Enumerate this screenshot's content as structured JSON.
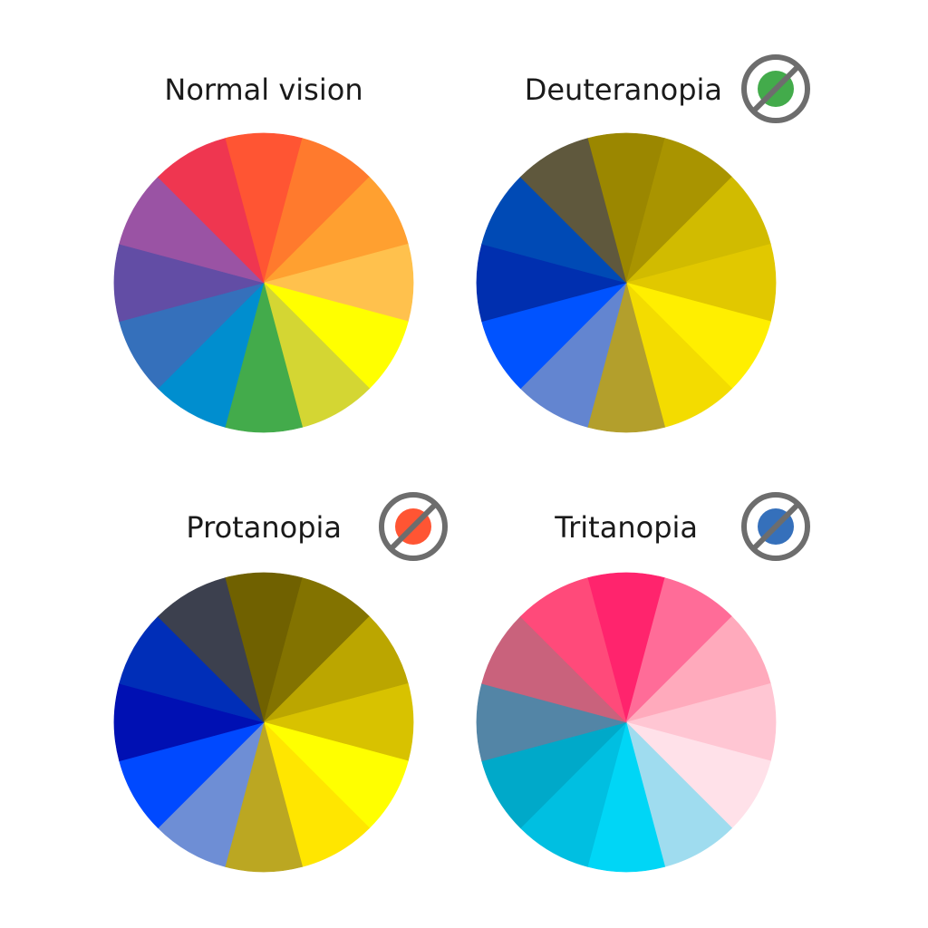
{
  "panels": [
    {
      "id": "normal",
      "title": "Normal vision",
      "icon": null,
      "segments": [
        "#ff5533",
        "#ff7a2d",
        "#ffa030",
        "#ffc14d",
        "#ffff00",
        "#d4d633",
        "#43ab4b",
        "#008ecf",
        "#3570bb",
        "#624da5",
        "#9a53a4",
        "#ef3650"
      ]
    },
    {
      "id": "deuteranopia",
      "title": "Deuteranopia",
      "icon": {
        "name": "no-green-icon",
        "color": "#43ab4b"
      },
      "segments": [
        "#9b8700",
        "#a99400",
        "#d1bb00",
        "#e1c800",
        "#ffef00",
        "#f3dc00",
        "#b39f2c",
        "#6385d0",
        "#0053ff",
        "#002faf",
        "#004ab5",
        "#5f583d"
      ]
    },
    {
      "id": "protanopia",
      "title": "Protanopia",
      "icon": {
        "name": "no-red-icon",
        "color": "#ff5533"
      },
      "segments": [
        "#706100",
        "#837300",
        "#bba600",
        "#d8c200",
        "#ffff00",
        "#ffe600",
        "#bba722",
        "#6e8ed5",
        "#0049ff",
        "#0010b3",
        "#002eb8",
        "#3c404e"
      ]
    },
    {
      "id": "tritanopia",
      "title": "Tritanopia",
      "icon": {
        "name": "no-blue-icon",
        "color": "#3570bb"
      },
      "segments": [
        "#ff246d",
        "#ff6c98",
        "#ffaabc",
        "#ffc6d3",
        "#ffe1e9",
        "#9fdcef",
        "#00d6f6",
        "#00bfe1",
        "#00a9c9",
        "#5385a6",
        "#c9627c",
        "#ff4a7a"
      ]
    }
  ],
  "icon_ring_color": "#6d6d6d"
}
